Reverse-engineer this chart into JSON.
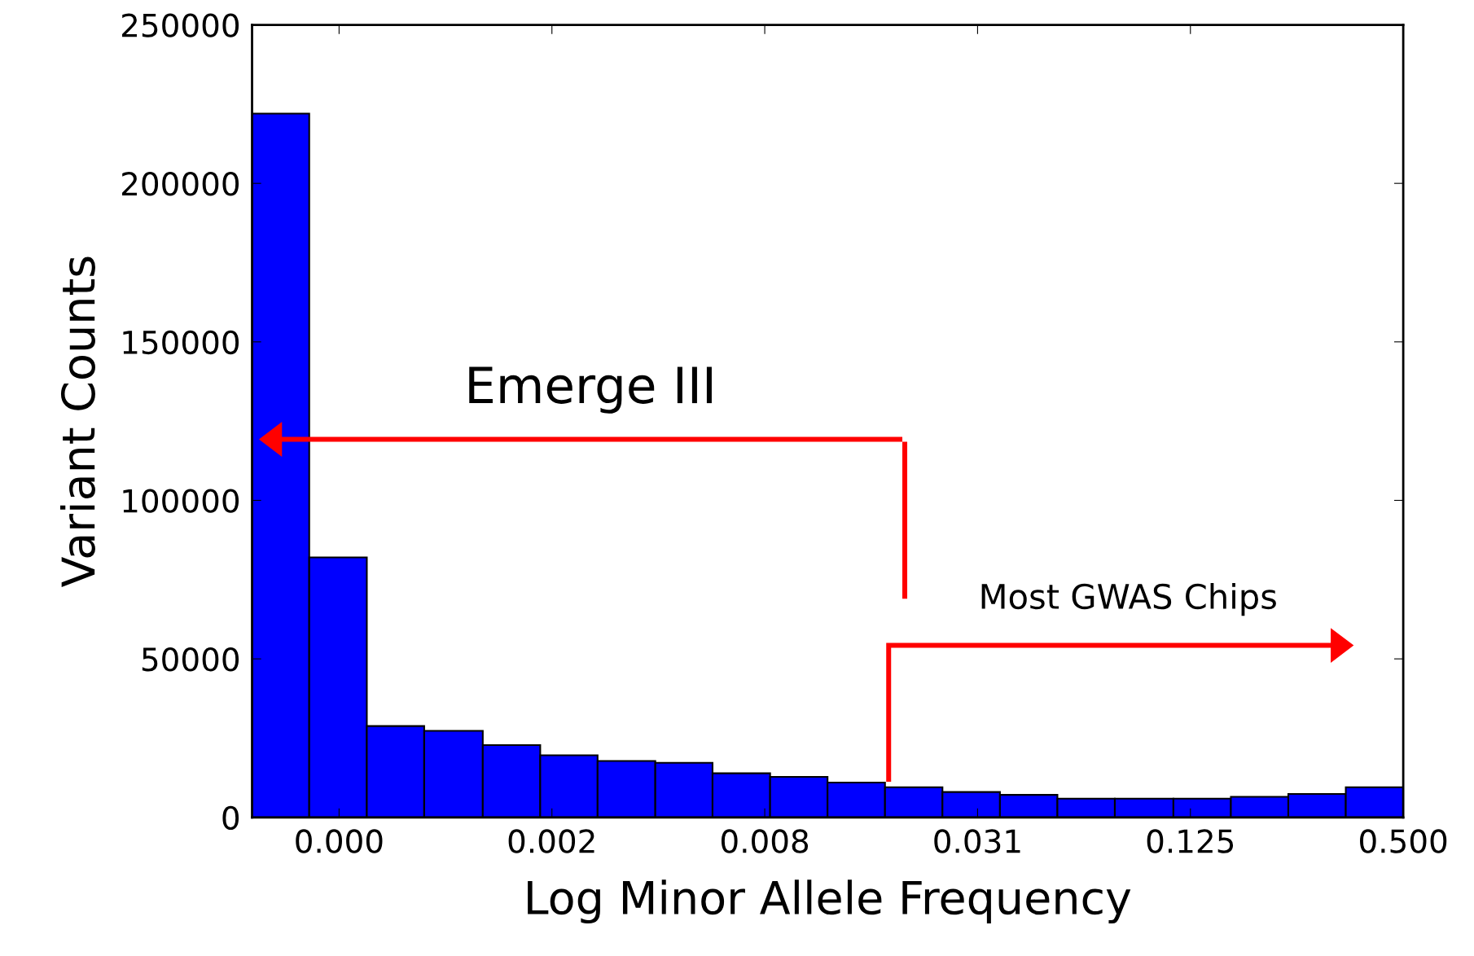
{
  "chart_data": {
    "type": "histogram",
    "xlabel": "Log Minor Allele Frequency",
    "ylabel": "Variant Counts",
    "bins": [
      0.000277,
      0.000402,
      0.000585,
      0.00085,
      0.001245,
      0.00181,
      0.00263,
      0.00383,
      0.00556,
      0.00809,
      0.01176,
      0.0171,
      0.02486,
      0.03615,
      0.05256,
      0.0764,
      0.1119,
      0.1627,
      0.2365,
      0.3439,
      0.5
    ],
    "log": "x",
    "values": [
      222000,
      82000,
      28800,
      27300,
      22800,
      19600,
      17800,
      17200,
      13900,
      12800,
      11000,
      9500,
      8000,
      7100,
      5900,
      5900,
      5900,
      6500,
      7400,
      9500
    ],
    "color": "#0000ff",
    "xlim": [
      0.000277,
      0.5
    ],
    "xticks": [
      {
        "value": 0.00048828125,
        "label": "0.000"
      },
      {
        "value": 0.001953125,
        "label": "0.002"
      },
      {
        "value": 0.0078125,
        "label": "0.008"
      },
      {
        "value": 0.03125,
        "label": "0.031"
      },
      {
        "value": 0.125,
        "label": "0.125"
      },
      {
        "value": 0.5,
        "label": "0.500"
      }
    ],
    "ylim": [
      0,
      250000
    ],
    "yticks": [
      0,
      50000,
      100000,
      150000,
      200000,
      250000
    ],
    "grid": false,
    "annotations": [
      "Emerge III",
      "Most GWAS Chips"
    ]
  }
}
